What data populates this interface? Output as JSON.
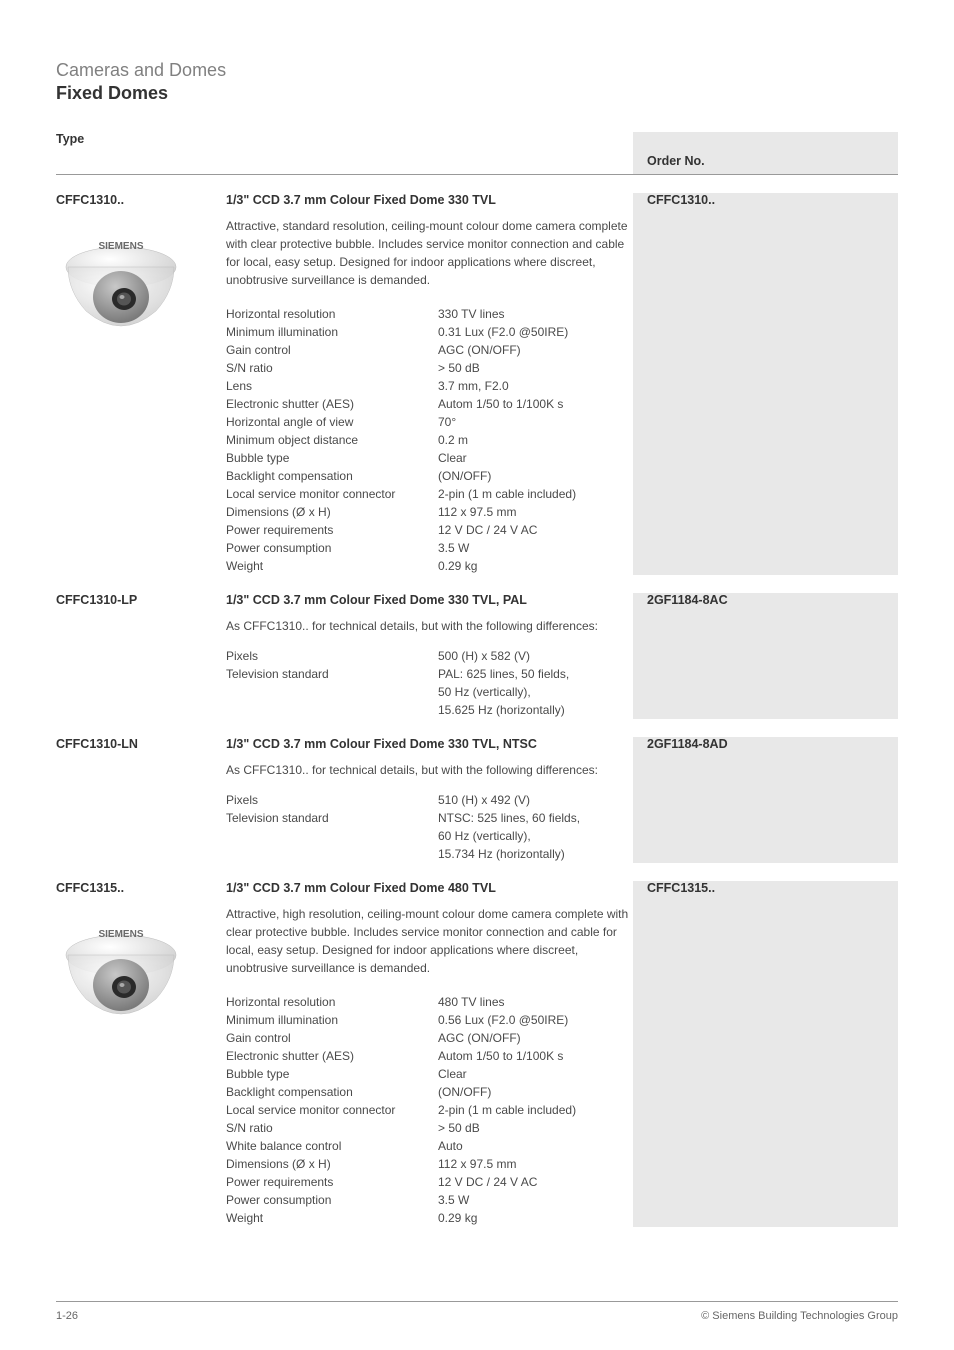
{
  "header": {
    "title": "Cameras and Domes",
    "subtitle": "Fixed Domes"
  },
  "columns": {
    "type": "Type",
    "order": "Order No."
  },
  "products": [
    {
      "type": "CFFC1310..",
      "order": "CFFC1310..",
      "title": "1/3\" CCD 3.7 mm Colour Fixed Dome 330 TVL",
      "has_image": true,
      "description": "Attractive, standard resolution, ceiling-mount colour dome camera complete with clear protective bubble. Includes service monitor connection and cable for local, easy setup. Designed for indoor applications where discreet, unobtrusive surveillance is demanded.",
      "specs": [
        {
          "label": "Horizontal resolution",
          "value": "330 TV lines"
        },
        {
          "label": "Minimum illumination",
          "value": "0.31 Lux (F2.0 @50IRE)"
        },
        {
          "label": "Gain control",
          "value": "AGC (ON/OFF)"
        },
        {
          "label": "S/N ratio",
          "value": "> 50 dB"
        },
        {
          "label": "Lens",
          "value": "3.7 mm, F2.0"
        },
        {
          "label": "Electronic shutter (AES)",
          "value": "Autom 1/50 to 1/100K s"
        },
        {
          "label": "Horizontal angle of view",
          "value": "70°"
        },
        {
          "label": "Minimum object distance",
          "value": "0.2 m"
        },
        {
          "label": "Bubble type",
          "value": "Clear"
        },
        {
          "label": "Backlight compensation",
          "value": "(ON/OFF)"
        },
        {
          "label": "Local service monitor connector",
          "value": "2-pin (1 m cable included)"
        },
        {
          "label": "Dimensions (Ø x H)",
          "value": "112 x 97.5 mm"
        },
        {
          "label": "Power requirements",
          "value": "12 V DC / 24 V AC"
        },
        {
          "label": "Power consumption",
          "value": "3.5 W"
        },
        {
          "label": "Weight",
          "value": "0.29 kg"
        }
      ]
    },
    {
      "type": "CFFC1310-LP",
      "order": "2GF1184-8AC",
      "title": "1/3\" CCD 3.7 mm Colour Fixed Dome 330 TVL, PAL",
      "has_image": false,
      "diff_note": "As CFFC1310.. for technical details, but with the following differences:",
      "specs": [
        {
          "label": "Pixels",
          "value": "500 (H) x 582 (V)"
        },
        {
          "label": "Television standard",
          "value": "PAL: 625 lines, 50 fields,\n50 Hz (vertically),\n15.625 Hz (horizontally)"
        }
      ]
    },
    {
      "type": "CFFC1310-LN",
      "order": "2GF1184-8AD",
      "title": "1/3\" CCD 3.7 mm Colour Fixed Dome 330 TVL, NTSC",
      "has_image": false,
      "diff_note": "As CFFC1310.. for technical details, but with the following differences:",
      "specs": [
        {
          "label": "Pixels",
          "value": "510 (H) x 492 (V)"
        },
        {
          "label": "Television standard",
          "value": "NTSC: 525 lines, 60 fields,\n60 Hz (vertically),\n15.734 Hz (horizontally)"
        }
      ]
    },
    {
      "type": "CFFC1315..",
      "order": "CFFC1315..",
      "title": "1/3\" CCD 3.7 mm Colour Fixed Dome 480 TVL",
      "has_image": true,
      "description": "Attractive, high resolution, ceiling-mount colour dome camera complete with clear protective bubble. Includes service monitor connection and cable for local, easy setup. Designed for indoor applications where discreet, unobtrusive surveillance is demanded.",
      "specs": [
        {
          "label": "Horizontal resolution",
          "value": "480 TV lines"
        },
        {
          "label": "Minimum illumination",
          "value": "0.56 Lux (F2.0 @50IRE)"
        },
        {
          "label": "Gain control",
          "value": "AGC (ON/OFF)"
        },
        {
          "label": "Electronic shutter (AES)",
          "value": "Autom 1/50 to 1/100K s"
        },
        {
          "label": "Bubble type",
          "value": "Clear"
        },
        {
          "label": "Backlight compensation",
          "value": "(ON/OFF)"
        },
        {
          "label": "Local service monitor connector",
          "value": "2-pin (1 m cable included)"
        },
        {
          "label": "S/N ratio",
          "value": "> 50 dB"
        },
        {
          "label": "White balance control",
          "value": "Auto"
        },
        {
          "label": "Dimensions (Ø x H)",
          "value": "112 x 97.5 mm"
        },
        {
          "label": "Power requirements",
          "value": "12 V DC / 24 V AC"
        },
        {
          "label": "Power consumption",
          "value": "3.5 W"
        },
        {
          "label": "Weight",
          "value": "0.29 kg"
        }
      ]
    }
  ],
  "footer": {
    "left": "1-26",
    "right": "© Siemens Building Technologies Group"
  },
  "image_brand": "SIEMENS",
  "colors": {
    "header_grey": "#808080",
    "text": "#333333",
    "body_text": "#4a4a4a",
    "order_bg": "#e8e8e8",
    "rule": "#999999"
  }
}
